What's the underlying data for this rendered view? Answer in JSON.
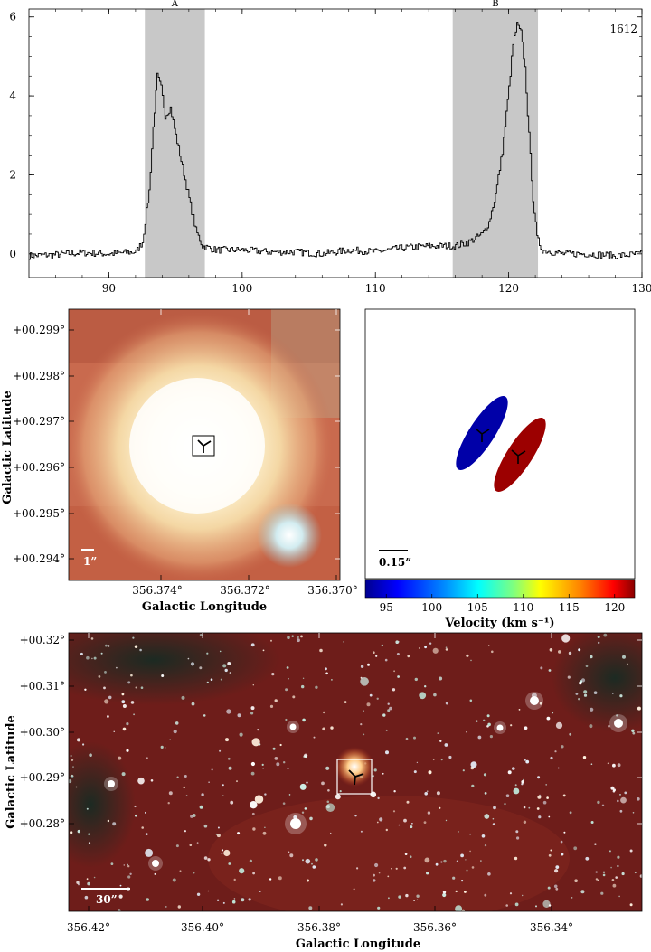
{
  "spectrum": {
    "label": "1612",
    "xticks": [
      "90",
      "100",
      "110",
      "120",
      "130"
    ],
    "yticks": [
      "0",
      "2",
      "4",
      "6"
    ],
    "bands": [
      {
        "label": "A",
        "x0": 92.7,
        "x1": 97.2
      },
      {
        "label": "B",
        "x0": 115.8,
        "x1": 122.2
      }
    ]
  },
  "chart_data": [
    {
      "type": "line",
      "title": "",
      "xlabel": "",
      "ylabel": "",
      "label": "1612",
      "xlim": [
        84,
        130
      ],
      "ylim": [
        -0.6,
        6.2
      ],
      "x": [
        84,
        86,
        88,
        90,
        92,
        92.5,
        93,
        93.3,
        93.6,
        93.9,
        94.2,
        94.6,
        95.0,
        95.5,
        96.0,
        96.5,
        97.0,
        98,
        100,
        102,
        104,
        106,
        108,
        110,
        112,
        114,
        116,
        117,
        118,
        118.5,
        119,
        119.5,
        120,
        120.3,
        120.6,
        120.9,
        121.2,
        121.5,
        121.8,
        122.1,
        122.5,
        124,
        126,
        128,
        130
      ],
      "y": [
        -0.05,
        -0.02,
        0.03,
        0.0,
        0.05,
        0.3,
        1.6,
        3.2,
        4.5,
        4.2,
        3.5,
        3.7,
        3.0,
        2.2,
        1.4,
        0.6,
        0.2,
        0.1,
        0.1,
        0.05,
        0.05,
        0.0,
        0.1,
        0.05,
        0.15,
        0.2,
        0.2,
        0.3,
        0.5,
        0.8,
        1.5,
        2.6,
        4.2,
        5.3,
        5.8,
        5.6,
        4.7,
        3.0,
        1.4,
        0.4,
        0.1,
        0.0,
        0.0,
        -0.05,
        0.0
      ]
    },
    {
      "type": "scatter",
      "title": "",
      "xlabel": "",
      "ylabel": "",
      "colorbar_label": "Velocity (km s⁻¹)",
      "colorbar_range": [
        92.7,
        122.2
      ],
      "colorbar_ticks": [
        "95",
        "100",
        "105",
        "110",
        "115",
        "120"
      ],
      "points": [
        {
          "name": "A",
          "velocity": 94.5,
          "color": "#0000a8"
        },
        {
          "name": "B",
          "velocity": 120.6,
          "color": "#9c0000"
        }
      ]
    }
  ],
  "zoom_image": {
    "ylabel": "Galactic Latitude",
    "xlabel": "Galactic Longitude",
    "yticks": [
      "+00.299°",
      "+00.298°",
      "+00.297°",
      "+00.296°",
      "+00.295°",
      "+00.294°"
    ],
    "xticks": [
      "356.374°",
      "356.372°",
      "356.370°"
    ],
    "scale_label": "1”"
  },
  "maser_plot": {
    "scale_label": "0.15”",
    "colorbar_label": "Velocity (km s⁻¹)",
    "colorbar_ticks": [
      "95",
      "100",
      "105",
      "110",
      "115",
      "120"
    ]
  },
  "wide_image": {
    "ylabel": "Galactic Latitude",
    "xlabel": "Galactic Longitude",
    "yticks": [
      "+00.32°",
      "+00.31°",
      "+00.30°",
      "+00.29°",
      "+00.28°"
    ],
    "xticks": [
      "356.42°",
      "356.40°",
      "356.38°",
      "356.36°",
      "356.34°"
    ],
    "scale_label": "30”"
  }
}
